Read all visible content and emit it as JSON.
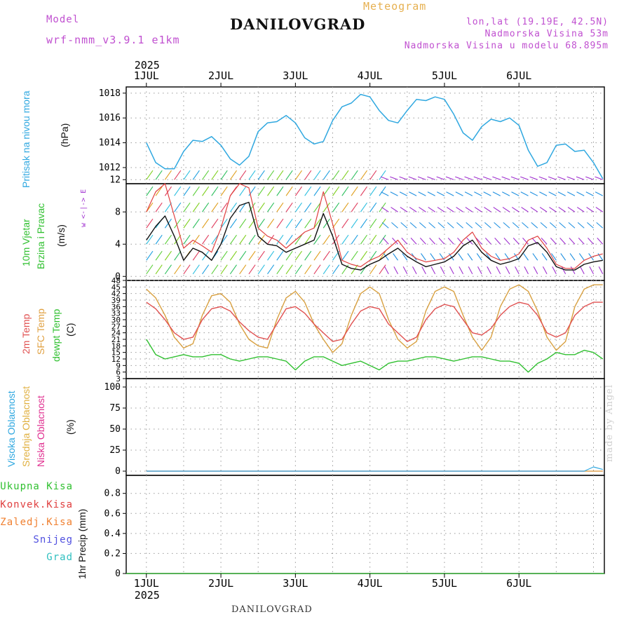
{
  "header": {
    "model_label": "Model",
    "model_name": "wrf-nmm_v3.9.1 e1km",
    "location": "DANILOVGRAD",
    "meteogram": "Meteogram",
    "lonlat": "lon,lat (19.19E, 42.5N)",
    "elevation": "Nadmorska Visina 53m",
    "model_elevation": "Nadmorska Visina u modelu 68.895m"
  },
  "footer": {
    "location": "DANILOVGRAD",
    "credit": "made by Angel"
  },
  "colors": {
    "pressure": "#30a8e0",
    "wind_speed": "#111111",
    "gust": "#e04040",
    "temp2m": "#e05050",
    "sfc_temp": "#d8a040",
    "dewpoint": "#30c030",
    "high_cloud": "#30a8e0",
    "mid_cloud": "#e0b040",
    "low_cloud": "#e03090",
    "precip_total": "#30c030",
    "precip_conv": "#e04040",
    "precip_frz": "#f08030",
    "snow": "#5050e0",
    "hail": "#30c0c0",
    "wind_barb_high": "#a030d0"
  },
  "chart_data": [
    {
      "panel": "top_axis",
      "type": "line",
      "year": "2025",
      "day_labels": [
        "1JUL",
        "2JUL",
        "3JUL",
        "4JUL",
        "5JUL",
        "6JUL"
      ]
    },
    {
      "panel": "pressure",
      "type": "line",
      "ylabel_side": "Pritisak na nivou mora",
      "unit": "(hPa)",
      "ylim": [
        1010.7,
        1018.5
      ],
      "yticks": [
        1012,
        1014,
        1016,
        1018
      ],
      "x_hours": [
        0,
        3,
        6,
        9,
        12,
        15,
        18,
        21,
        24,
        27,
        30,
        33,
        36,
        39,
        42,
        45,
        48,
        51,
        54,
        57,
        60,
        63,
        66,
        69,
        72,
        75,
        78,
        81,
        84,
        87,
        90,
        93,
        96,
        99,
        102,
        105,
        108,
        111,
        114,
        117,
        120,
        123,
        126,
        129,
        132,
        135,
        138,
        141,
        144,
        147
      ],
      "values": [
        1014.0,
        1012.4,
        1011.9,
        1011.9,
        1013.3,
        1014.2,
        1014.1,
        1014.5,
        1013.8,
        1012.7,
        1012.2,
        1012.9,
        1014.9,
        1015.6,
        1015.7,
        1016.2,
        1015.6,
        1014.4,
        1013.9,
        1014.1,
        1015.8,
        1016.9,
        1017.2,
        1017.9,
        1017.7,
        1016.6,
        1015.8,
        1015.6,
        1016.6,
        1017.5,
        1017.4,
        1017.7,
        1017.5,
        1016.3,
        1014.8,
        1014.2,
        1015.3,
        1015.9,
        1015.7,
        1016.0,
        1015.4,
        1013.4,
        1012.1,
        1012.4,
        1013.8,
        1013.9,
        1013.3,
        1013.4,
        1012.4,
        1011.1
      ]
    },
    {
      "panel": "wind",
      "type": "line",
      "ylabel_side": [
        "10m Vjetar",
        "Brzina i Pravac"
      ],
      "unit": "(m/s)",
      "compass": "w <-|-> E",
      "ylim": [
        -0.5,
        11.5
      ],
      "yticks": [
        0,
        4,
        8,
        12
      ],
      "x_hours": [
        0,
        3,
        6,
        9,
        12,
        15,
        18,
        21,
        24,
        27,
        30,
        33,
        36,
        39,
        42,
        45,
        48,
        51,
        54,
        57,
        60,
        63,
        66,
        69,
        72,
        75,
        78,
        81,
        84,
        87,
        90,
        93,
        96,
        99,
        102,
        105,
        108,
        111,
        114,
        117,
        120,
        123,
        126,
        129,
        132,
        135,
        138,
        141,
        144,
        147
      ],
      "series": [
        {
          "name": "speed",
          "values": [
            4.5,
            6.2,
            7.5,
            5.0,
            2.0,
            3.5,
            3.0,
            2.0,
            4.0,
            7.2,
            8.8,
            9.2,
            5.0,
            4.0,
            3.8,
            3.0,
            3.5,
            4.0,
            4.5,
            7.8,
            5.0,
            1.5,
            1.0,
            0.8,
            1.5,
            2.0,
            2.8,
            3.5,
            2.5,
            1.8,
            1.2,
            1.5,
            1.8,
            2.5,
            3.8,
            4.5,
            3.0,
            2.0,
            1.5,
            1.8,
            2.2,
            3.8,
            4.2,
            3.0,
            1.2,
            0.8,
            0.8,
            1.5,
            1.8,
            2.0
          ]
        },
        {
          "name": "gust",
          "values": [
            8.0,
            10.5,
            11.5,
            7.5,
            3.5,
            4.5,
            3.8,
            3.0,
            6.0,
            10.0,
            11.5,
            11.0,
            6.0,
            5.0,
            4.5,
            3.5,
            4.5,
            5.5,
            6.0,
            10.5,
            6.5,
            2.0,
            1.5,
            1.2,
            2.0,
            2.5,
            3.5,
            4.5,
            3.0,
            2.2,
            1.8,
            2.0,
            2.2,
            3.0,
            4.5,
            5.5,
            3.5,
            2.5,
            2.0,
            2.2,
            2.8,
            4.5,
            5.0,
            3.5,
            1.5,
            1.0,
            1.0,
            2.0,
            2.5,
            2.8
          ]
        }
      ]
    },
    {
      "panel": "temperature",
      "type": "line",
      "ylabel_side": [
        "2m Temp",
        "SFC Temp",
        "dewpt Temp"
      ],
      "unit": "(C)",
      "ylim": [
        3,
        48
      ],
      "yticks": [
        3,
        6,
        9,
        12,
        15,
        18,
        21,
        24,
        27,
        30,
        33,
        36,
        39,
        42,
        45,
        48
      ],
      "x_hours": [
        0,
        3,
        6,
        9,
        12,
        15,
        18,
        21,
        24,
        27,
        30,
        33,
        36,
        39,
        42,
        45,
        48,
        51,
        54,
        57,
        60,
        63,
        66,
        69,
        72,
        75,
        78,
        81,
        84,
        87,
        90,
        93,
        96,
        99,
        102,
        105,
        108,
        111,
        114,
        117,
        120,
        123,
        126,
        129,
        132,
        135,
        138,
        141,
        144,
        147
      ],
      "series": [
        {
          "name": "2m Temp",
          "values": [
            38,
            35,
            30,
            24,
            21,
            22,
            30,
            35,
            36,
            34,
            29,
            25,
            22,
            21,
            28,
            35,
            36,
            33,
            28,
            24,
            20,
            21,
            28,
            34,
            36,
            35,
            28,
            24,
            20,
            22,
            30,
            35,
            37,
            36,
            30,
            24,
            23,
            26,
            32,
            36,
            38,
            37,
            32,
            24,
            22,
            24,
            32,
            36,
            38,
            38
          ]
        },
        {
          "name": "SFC Temp",
          "values": [
            44,
            40,
            32,
            22,
            17,
            19,
            32,
            41,
            42,
            38,
            28,
            21,
            18,
            17,
            30,
            40,
            43,
            38,
            28,
            21,
            15,
            19,
            32,
            42,
            45,
            42,
            30,
            21,
            17,
            20,
            34,
            43,
            45,
            43,
            32,
            22,
            16,
            22,
            36,
            44,
            46,
            43,
            34,
            22,
            16,
            20,
            36,
            44,
            46,
            46
          ]
        },
        {
          "name": "dewpt Temp",
          "values": [
            21,
            14,
            12,
            13,
            14,
            13,
            13,
            14,
            14,
            12,
            11,
            12,
            13,
            13,
            12,
            11,
            7,
            11,
            13,
            13,
            11,
            9,
            10,
            11,
            9,
            7,
            10,
            11,
            11,
            12,
            13,
            13,
            12,
            11,
            12,
            13,
            13,
            12,
            11,
            11,
            10,
            6,
            10,
            12,
            15,
            14,
            14,
            16,
            15,
            12
          ]
        }
      ]
    },
    {
      "panel": "cloud_cover",
      "type": "line",
      "ylabel_side": [
        "Visoka Oblacnost",
        "Srednja Oblacnost",
        "Niska Oblacnost"
      ],
      "unit": "(%)",
      "ylim": [
        -5,
        110
      ],
      "yticks": [
        0,
        25,
        50,
        75,
        100
      ],
      "series": [
        {
          "name": "Visoka Oblacnost",
          "values": [
            0,
            0,
            0,
            0,
            0,
            0,
            0,
            0,
            0,
            0,
            0,
            0,
            0,
            0,
            0,
            0,
            0,
            0,
            0,
            0,
            0,
            0,
            0,
            0,
            0,
            0,
            0,
            0,
            0,
            0,
            0,
            0,
            0,
            0,
            0,
            0,
            0,
            0,
            0,
            0,
            0,
            0,
            0,
            0,
            0,
            0,
            0,
            0,
            5,
            2
          ]
        },
        {
          "name": "Srednja Oblacnost",
          "values": [
            0,
            0,
            0,
            0,
            0,
            0,
            0,
            0,
            0,
            0,
            0,
            0,
            0,
            0,
            0,
            0,
            0,
            0,
            0,
            0,
            0,
            0,
            0,
            0,
            0,
            0,
            0,
            0,
            0,
            0,
            0,
            0,
            0,
            0,
            0,
            0,
            0,
            0,
            0,
            0,
            0,
            0,
            0,
            0,
            0,
            0,
            0,
            0,
            0,
            0
          ]
        },
        {
          "name": "Niska Oblacnost",
          "values": [
            0,
            0,
            0,
            0,
            0,
            0,
            0,
            0,
            0,
            0,
            0,
            0,
            0,
            0,
            0,
            0,
            0,
            0,
            0,
            0,
            0,
            0,
            0,
            0,
            0,
            0,
            0,
            0,
            0,
            0,
            0,
            0,
            0,
            0,
            0,
            0,
            0,
            0,
            0,
            0,
            0,
            0,
            0,
            0,
            0,
            0,
            0,
            0,
            0,
            0
          ]
        }
      ]
    },
    {
      "panel": "precipitation",
      "type": "bar",
      "ylabel_side": "1hr Precip (mm)",
      "legend": [
        "Ukupna Kisa",
        "Konvek.Kisa",
        "Zaledj.Kisa",
        "Snijeg",
        "Grad"
      ],
      "ylim": [
        0,
        0.98
      ],
      "yticks": [
        0,
        0.2,
        0.4,
        0.6,
        0.8
      ],
      "values": [
        0,
        0,
        0,
        0,
        0,
        0
      ]
    },
    {
      "panel": "bottom_axis",
      "type": "line",
      "year": "2025",
      "day_labels": [
        "1JUL",
        "2JUL",
        "3JUL",
        "4JUL",
        "5JUL",
        "6JUL"
      ]
    }
  ]
}
